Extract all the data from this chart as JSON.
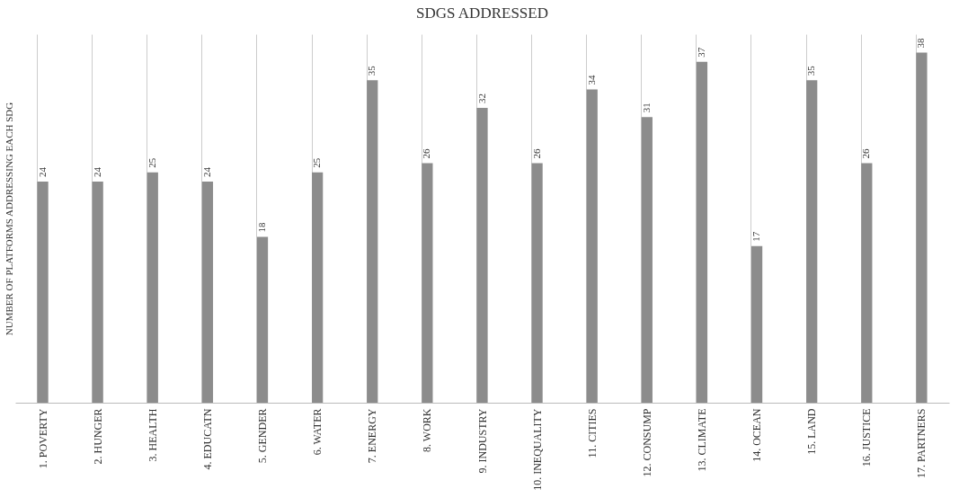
{
  "chart_data": {
    "type": "bar",
    "title": "SDGS ADDRESSED",
    "ylabel": "NUMBER OF PLATFORMS ADDRESSING EACH SDG",
    "categories": [
      "1. POVERTY",
      "2. HUNGER",
      "3. HEALTH",
      "4. EDUCATN",
      "5. GENDER",
      "6. WATER",
      "7. ENERGY",
      "8. WORK",
      "9. INDUSTRY",
      "10. INEQUALITY",
      "11. CITIES",
      "12. CONSUMP",
      "13. CLIMATE",
      "14. OCEAN",
      "15. LAND",
      "16. JUSTICE",
      "17. PARTNERS"
    ],
    "values": [
      24,
      24,
      25,
      24,
      18,
      25,
      35,
      26,
      32,
      26,
      34,
      31,
      37,
      17,
      35,
      26,
      38
    ],
    "color": "#8c8c8c",
    "data_labels": true,
    "grid": "x",
    "tick_labels": "x"
  }
}
